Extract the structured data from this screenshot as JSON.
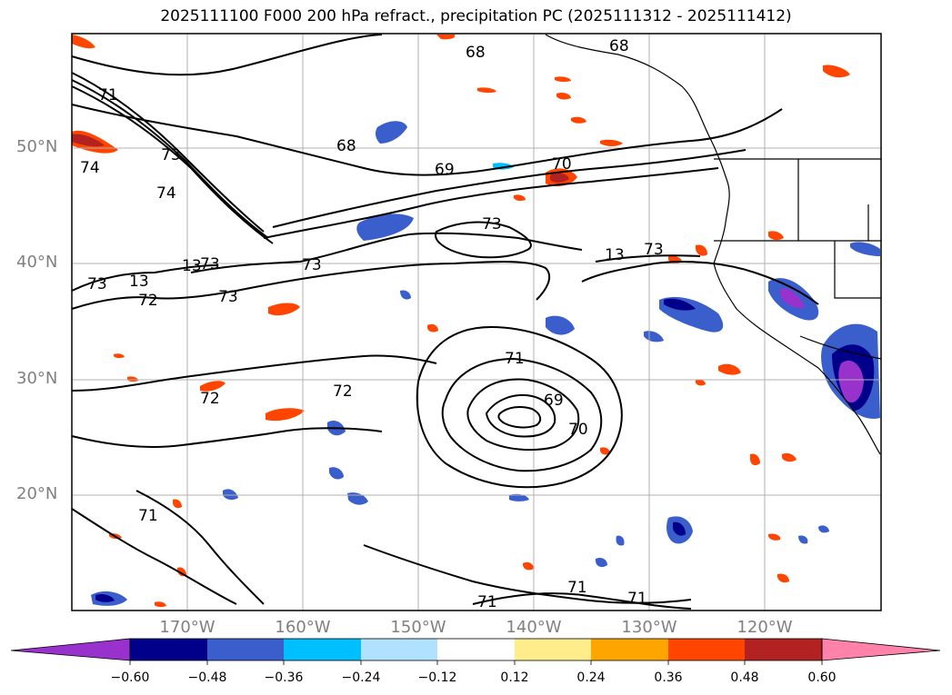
{
  "title": "2025111100 F000 200 hPa refract., precipitation PC (2025111312 - 2025111412)",
  "map": {
    "lat_labels": [
      "50°N",
      "40°N",
      "30°N",
      "20°N"
    ],
    "lon_labels": [
      "170°W",
      "160°W",
      "150°W",
      "140°W",
      "130°W",
      "120°W"
    ],
    "contour_labels": [
      "68",
      "68",
      "68",
      "69",
      "70",
      "71",
      "73",
      "74",
      "73",
      "74",
      "73",
      "13",
      "73",
      "72",
      "73",
      "13",
      "73",
      "13",
      "73",
      "71",
      "72",
      "72",
      "69",
      "70",
      "71",
      "71",
      "71",
      "71"
    ],
    "colors": {
      "contour": "#000000",
      "grid": "#b0b0b0",
      "coast": "#000000"
    }
  },
  "colorbar": {
    "tick_labels": [
      "−0.60",
      "−0.48",
      "−0.36",
      "−0.24",
      "−0.12",
      "0.12",
      "0.24",
      "0.36",
      "0.48",
      "0.60"
    ],
    "colors": [
      "#9932cc",
      "#00008b",
      "#3a5fcd",
      "#00bfff",
      "#b0e2ff",
      "#ffffff",
      "#ffec8b",
      "#ffa500",
      "#ff4500",
      "#b22222",
      "#ff82ab"
    ]
  }
}
